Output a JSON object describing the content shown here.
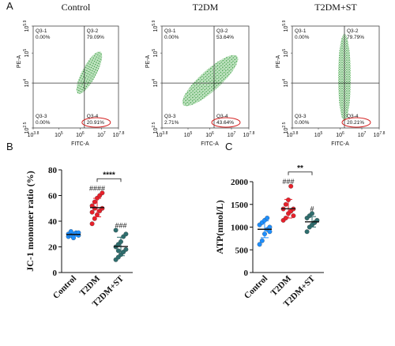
{
  "chart_data": [
    {
      "type": "flow",
      "panel": "A",
      "title": "Control",
      "xlabel": "FITC-A",
      "ylabel": "PE-A",
      "tick_base": "10",
      "xlim": [
        3.8,
        7.8
      ],
      "xticks": [
        3.8,
        5,
        6,
        7,
        7.8
      ],
      "ylim": [
        2.5,
        5.9
      ],
      "yticks": [
        2.5,
        4,
        5,
        5.9
      ],
      "gate": [
        6.2,
        4
      ],
      "quadrants": [
        "Q3-1",
        "Q3-2",
        "Q3-3",
        "Q3-4"
      ],
      "quadrant_values": [
        "0.00%",
        "79.09%",
        "0.00%",
        "20.91%"
      ]
    },
    {
      "type": "flow",
      "title": "T2DM",
      "xlabel": "FITC-A",
      "ylabel": "PE-A",
      "tick_base": "10",
      "xlim": [
        3.8,
        7.8
      ],
      "xticks": [
        3.8,
        5,
        6,
        7,
        7.8
      ],
      "ylim": [
        2.5,
        5.9
      ],
      "yticks": [
        2.5,
        4,
        5,
        5.9
      ],
      "gate": [
        6.2,
        4
      ],
      "quadrants": [
        "Q3-1",
        "Q3-2",
        "Q3-3",
        "Q3-4"
      ],
      "quadrant_values": [
        "0.00%",
        "53.64%",
        "2.71%",
        "43.64%"
      ]
    },
    {
      "type": "flow",
      "title": "T2DM+ST",
      "xlabel": "FITC-A",
      "ylabel": "PE-A",
      "tick_base": "10",
      "xlim": [
        3.8,
        7.8
      ],
      "xticks": [
        3.8,
        5,
        6,
        7,
        7.8
      ],
      "ylim": [
        2.5,
        5.9
      ],
      "yticks": [
        2.5,
        4,
        5,
        5.9
      ],
      "gate": [
        6.2,
        4
      ],
      "quadrants": [
        "Q3-1",
        "Q3-2",
        "Q3-3",
        "Q3-4"
      ],
      "quadrant_values": [
        "0.00%",
        "79.79%",
        "0.00%",
        "20.21%"
      ]
    },
    {
      "type": "dot",
      "panel": "B",
      "ylabel": "JC-1 monomer ratio (%)",
      "ylim": [
        0,
        80
      ],
      "yticks": [
        0,
        20,
        40,
        60,
        80
      ],
      "bracket_label": "****",
      "series": [
        {
          "name": "Control",
          "color": "#1e8fff",
          "values": [
            28,
            29,
            30,
            31,
            29,
            30,
            32,
            27,
            30,
            31
          ],
          "mean": 29.7,
          "sd": 1.5
        },
        {
          "name": "T2DM",
          "color": "#e8202a",
          "values": [
            38,
            42,
            45,
            48,
            50,
            52,
            55,
            58,
            60,
            62,
            47,
            50
          ],
          "mean": 50.6,
          "sd": 7.2,
          "label": "####"
        },
        {
          "name": "T2DM+ST",
          "color": "#2e6e6e",
          "values": [
            10,
            12,
            14,
            16,
            18,
            20,
            22,
            24,
            28,
            30,
            33,
            17
          ],
          "mean": 20.3,
          "sd": 7.2,
          "label": "###"
        }
      ]
    },
    {
      "type": "dot",
      "panel": "C",
      "ylabel": "ATP(nmol/L)",
      "ylim": [
        0,
        2000
      ],
      "yticks": [
        0,
        500,
        1000,
        1500,
        2000
      ],
      "bracket_label": "**",
      "series": [
        {
          "name": "Control",
          "color": "#1e8fff",
          "values": [
            620,
            700,
            850,
            950,
            1000,
            1050,
            1100,
            1150,
            1200,
            900
          ],
          "mean": 952,
          "sd": 185
        },
        {
          "name": "T2DM",
          "color": "#e8202a",
          "values": [
            1150,
            1200,
            1300,
            1350,
            1400,
            1400,
            1500,
            1600,
            1900,
            1250
          ],
          "mean": 1405,
          "sd": 205,
          "label": "###"
        },
        {
          "name": "T2DM+ST",
          "color": "#2e6e6e",
          "values": [
            900,
            1000,
            1050,
            1100,
            1150,
            1200,
            1250,
            1300,
            1100
          ],
          "mean": 1117,
          "sd": 115,
          "label": "#"
        }
      ]
    }
  ]
}
